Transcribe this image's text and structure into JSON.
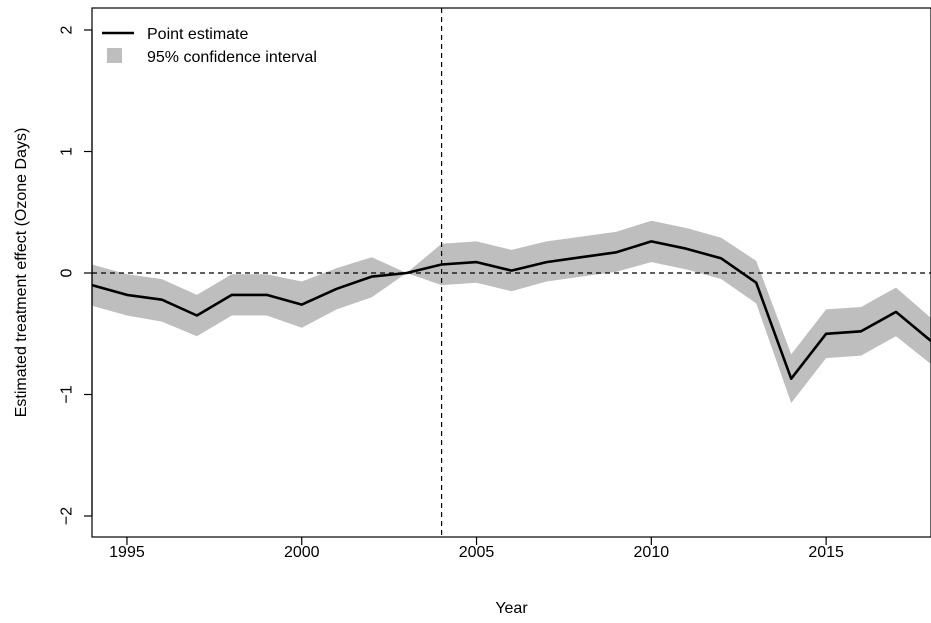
{
  "chart_data": {
    "type": "line",
    "title": "",
    "xlabel": "Year",
    "ylabel": "Estimated treatment effect (Ozone Days)",
    "xlim": [
      1994,
      2018
    ],
    "ylim": [
      -2.2,
      2.2
    ],
    "x_ticks": [
      1995,
      2000,
      2005,
      2010,
      2015
    ],
    "x_tick_labels": [
      "1995",
      "2000",
      "2005",
      "2010",
      "2015"
    ],
    "y_ticks": [
      -2,
      -1,
      0,
      1,
      2
    ],
    "y_tick_labels": [
      "−2",
      "−1",
      "0",
      "1",
      "2"
    ],
    "reference_lines": {
      "vertical_x": 2004,
      "horizontal_y": 0,
      "style": "dashed"
    },
    "legend": {
      "position": "top-left",
      "entries": [
        {
          "label": "Point estimate",
          "style": "line",
          "color": "#000000"
        },
        {
          "label": "95% confidence interval",
          "style": "band",
          "color": "#bebebe"
        }
      ]
    },
    "x": [
      1994,
      1995,
      1996,
      1997,
      1998,
      1999,
      2000,
      2001,
      2002,
      2003,
      2004,
      2005,
      2006,
      2007,
      2008,
      2009,
      2010,
      2011,
      2012,
      2013,
      2014,
      2015,
      2016,
      2017,
      2018
    ],
    "series": [
      {
        "name": "Point estimate",
        "color": "#000000",
        "values": [
          -0.1,
          -0.18,
          -0.22,
          -0.35,
          -0.18,
          -0.18,
          -0.26,
          -0.13,
          -0.03,
          0.0,
          0.07,
          0.09,
          0.02,
          0.09,
          0.13,
          0.17,
          0.26,
          0.2,
          0.12,
          -0.08,
          -0.87,
          -0.5,
          -0.48,
          -0.32,
          -0.56
        ]
      },
      {
        "name": "95% confidence interval",
        "color": "#bebebe",
        "lower": [
          -0.27,
          -0.35,
          -0.4,
          -0.52,
          -0.35,
          -0.35,
          -0.45,
          -0.3,
          -0.2,
          0.0,
          -0.1,
          -0.08,
          -0.15,
          -0.07,
          -0.03,
          0.01,
          0.09,
          0.03,
          -0.05,
          -0.25,
          -1.07,
          -0.7,
          -0.68,
          -0.52,
          -0.75
        ],
        "upper": [
          0.07,
          -0.01,
          -0.05,
          -0.18,
          -0.01,
          -0.01,
          -0.07,
          0.04,
          0.13,
          0.0,
          0.24,
          0.26,
          0.19,
          0.26,
          0.3,
          0.34,
          0.43,
          0.37,
          0.29,
          0.1,
          -0.67,
          -0.3,
          -0.28,
          -0.12,
          -0.37
        ]
      }
    ],
    "grid": false
  }
}
